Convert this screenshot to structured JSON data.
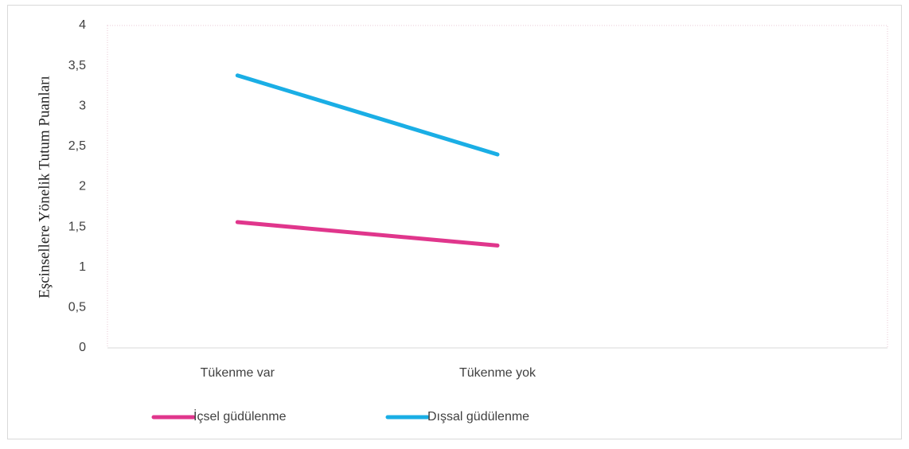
{
  "chart_data": {
    "type": "line",
    "y_label": "Eşcinsellere Yönelik Tutum Puanları",
    "categories": [
      "Tükenme var",
      "Tükenme yok",
      null
    ],
    "series": [
      {
        "name": "İçsel güdülenme",
        "color": "#e0368c",
        "values": [
          1.56,
          1.27,
          null
        ]
      },
      {
        "name": "Dışsal güdülenme",
        "color": "#1aaee5",
        "values": [
          3.38,
          2.4,
          null
        ]
      }
    ],
    "ylim": [
      0,
      4
    ],
    "yticks": [
      0,
      {
        "value": 0.5,
        "label": "0,5"
      },
      1,
      {
        "value": 1.5,
        "label": "1,5"
      },
      2,
      {
        "value": 2.5,
        "label": "2,5"
      },
      3,
      {
        "value": 3.5,
        "label": "3,5"
      },
      4
    ],
    "legend": "bottom"
  }
}
